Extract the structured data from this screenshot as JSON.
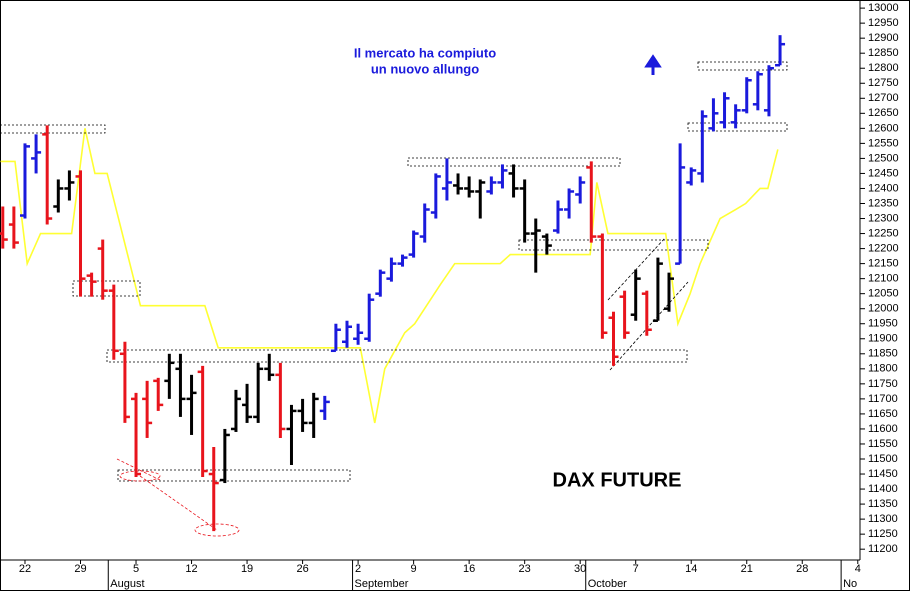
{
  "chart_data": {
    "type": "ohlc",
    "title": "DAX FUTURE",
    "annotation": [
      "Il mercato ha compiuto",
      "un nuovo allungo"
    ],
    "xlim": [
      -2.25,
      75.2
    ],
    "ylim": [
      11164,
      13027
    ],
    "xticks": [
      {
        "value": 0,
        "label": "22"
      },
      {
        "value": 5,
        "label": "29"
      },
      {
        "value": 10,
        "label": "5"
      },
      {
        "value": 15,
        "label": "12"
      },
      {
        "value": 20,
        "label": "19"
      },
      {
        "value": 25,
        "label": "26"
      },
      {
        "value": 30,
        "label": "2"
      },
      {
        "value": 35,
        "label": "9"
      },
      {
        "value": 40,
        "label": "16"
      },
      {
        "value": 45,
        "label": "23"
      },
      {
        "value": 50,
        "label": "30"
      },
      {
        "value": 55,
        "label": "7"
      },
      {
        "value": 60,
        "label": "14"
      },
      {
        "value": 65,
        "label": "21"
      },
      {
        "value": 70,
        "label": "28"
      },
      {
        "value": 75,
        "label": "4"
      }
    ],
    "month_ticks": [
      {
        "value": 7.5,
        "label": "August"
      },
      {
        "value": 29.5,
        "label": "September"
      },
      {
        "value": 50.5,
        "label": "October"
      },
      {
        "value": 73.5,
        "label": "No"
      }
    ],
    "yticks": [
      11200,
      11250,
      11300,
      11350,
      11400,
      11450,
      11500,
      11550,
      11600,
      11650,
      11700,
      11750,
      11800,
      11850,
      11900,
      11950,
      12000,
      12050,
      12100,
      12150,
      12200,
      12250,
      12300,
      12350,
      12400,
      12450,
      12500,
      12550,
      12600,
      12650,
      12700,
      12750,
      12800,
      12850,
      12900,
      12950,
      13000
    ],
    "x": [
      -2,
      -1,
      0,
      1,
      2,
      3,
      4,
      5,
      6,
      7,
      8,
      9,
      10,
      11,
      12,
      13,
      14,
      15,
      16,
      17,
      18,
      19,
      20,
      21,
      22,
      23,
      24,
      25,
      26,
      27,
      28,
      29,
      30,
      31,
      32,
      33,
      34,
      35,
      36,
      37,
      38,
      39,
      40,
      41,
      42,
      43,
      44,
      45,
      46,
      47,
      48,
      49,
      50,
      51,
      52,
      53,
      54,
      55,
      56,
      57,
      58,
      59,
      60,
      61,
      62,
      63,
      64,
      65,
      66,
      67,
      68
    ],
    "open": [
      12250,
      12280,
      12310,
      12500,
      12580,
      12340,
      12400,
      12440,
      12110,
      12200,
      12060,
      11850,
      11700,
      11700,
      11760,
      11760,
      11800,
      11700,
      11790,
      11450,
      11430,
      11600,
      11680,
      11640,
      11800,
      11780,
      11600,
      11660,
      11620,
      11660,
      11860,
      11890,
      11900,
      11900,
      12050,
      12100,
      12150,
      12180,
      12240,
      12320,
      12400,
      12410,
      12400,
      12390,
      12390,
      12420,
      12450,
      12400,
      12250,
      12240,
      12260,
      12330,
      12380,
      12470,
      12240,
      11970,
      12040,
      11980,
      12050,
      11960,
      12000,
      12150,
      12420,
      12450,
      12600,
      12620,
      12620,
      12660,
      12680,
      12660,
      12810
    ],
    "high": [
      12340,
      12340,
      12550,
      12580,
      12610,
      12430,
      12460,
      12460,
      12120,
      12230,
      12080,
      11890,
      11720,
      11760,
      11770,
      11850,
      11850,
      11780,
      11810,
      11540,
      11600,
      11730,
      11750,
      11820,
      11850,
      11820,
      11680,
      11700,
      11720,
      11710,
      11950,
      11960,
      11950,
      12050,
      12130,
      12170,
      12180,
      12260,
      12350,
      12450,
      12500,
      12450,
      12440,
      12430,
      12440,
      12480,
      12480,
      12430,
      12300,
      12250,
      12360,
      12400,
      12440,
      12490,
      12250,
      11990,
      12060,
      12130,
      12060,
      12170,
      12120,
      12550,
      12470,
      12660,
      12700,
      12720,
      12680,
      12770,
      12790,
      12810,
      12910
    ],
    "low": [
      12200,
      12200,
      12300,
      12450,
      12280,
      12320,
      12360,
      12040,
      12040,
      12030,
      11830,
      11620,
      11440,
      11570,
      11660,
      11700,
      11640,
      11580,
      11440,
      11260,
      11420,
      11590,
      11620,
      11620,
      11760,
      11570,
      11480,
      11590,
      11570,
      11630,
      11860,
      11870,
      11880,
      11890,
      12040,
      12090,
      12140,
      12170,
      12220,
      12300,
      12360,
      12380,
      12370,
      12300,
      12380,
      12400,
      12370,
      12220,
      12120,
      12180,
      12250,
      12300,
      12350,
      12220,
      11900,
      11810,
      11900,
      11960,
      11910,
      11960,
      11990,
      12150,
      12410,
      12420,
      12590,
      12600,
      12600,
      12650,
      12660,
      12640,
      12810
    ],
    "close": [
      12230,
      12220,
      12540,
      12520,
      12300,
      12400,
      12420,
      12100,
      12090,
      12060,
      11860,
      11640,
      11450,
      11620,
      11680,
      11820,
      11700,
      11720,
      11460,
      11420,
      11580,
      11700,
      11640,
      11800,
      11780,
      11600,
      11660,
      11620,
      11700,
      11690,
      11930,
      11940,
      11920,
      12030,
      12120,
      12150,
      12170,
      12250,
      12330,
      12440,
      12420,
      12400,
      12390,
      12420,
      12420,
      12460,
      12400,
      12250,
      12260,
      12210,
      12330,
      12390,
      12420,
      12240,
      11920,
      11840,
      11920,
      12100,
      11930,
      12150,
      12100,
      12470,
      12460,
      12640,
      12650,
      12700,
      12660,
      12760,
      12780,
      12800,
      12880
    ],
    "colors": [
      "#e8141c",
      "#e8141c",
      "#1a1adc",
      "#1a1adc",
      "#e8141c",
      "#000000",
      "#000000",
      "#e8141c",
      "#e8141c",
      "#e8141c",
      "#e8141c",
      "#e8141c",
      "#e8141c",
      "#e8141c",
      "#e8141c",
      "#000000",
      "#000000",
      "#000000",
      "#e8141c",
      "#e8141c",
      "#000000",
      "#000000",
      "#000000",
      "#000000",
      "#000000",
      "#e8141c",
      "#000000",
      "#000000",
      "#000000",
      "#1a1adc",
      "#1a1adc",
      "#1a1adc",
      "#1a1adc",
      "#1a1adc",
      "#1a1adc",
      "#1a1adc",
      "#1a1adc",
      "#1a1adc",
      "#1a1adc",
      "#1a1adc",
      "#1a1adc",
      "#000000",
      "#000000",
      "#000000",
      "#1a1adc",
      "#1a1adc",
      "#000000",
      "#000000",
      "#000000",
      "#000000",
      "#1a1adc",
      "#1a1adc",
      "#1a1adc",
      "#e8141c",
      "#e8141c",
      "#e8141c",
      "#e8141c",
      "#000000",
      "#e8141c",
      "#000000",
      "#000000",
      "#1a1adc",
      "#1a1adc",
      "#1a1adc",
      "#1a1adc",
      "#1a1adc",
      "#1a1adc",
      "#1a1adc",
      "#1a1adc",
      "#1a1adc",
      "#1a1adc"
    ],
    "line": {
      "color": "#ffff33",
      "x": [
        -2.2,
        -0.9,
        0.2,
        1.4,
        4.2,
        5.4,
        6.3,
        7.4,
        10.4,
        16.2,
        17.4,
        30.2,
        31.5,
        32.4,
        34.2,
        35.1,
        37.4,
        38.7,
        42.8,
        43.7,
        50.9,
        51.5,
        52.5,
        57.7,
        58.8,
        59.9,
        60.8,
        62.6,
        64.0,
        64.9,
        66.2,
        66.9,
        67.8
      ],
      "values": [
        12490,
        12490,
        12150,
        12250,
        12250,
        12600,
        12450,
        12450,
        12010,
        12010,
        11870,
        11870,
        11620,
        11800,
        11920,
        11950,
        12080,
        12150,
        12150,
        12180,
        12180,
        12420,
        12250,
        12250,
        11950,
        12050,
        12150,
        12300,
        12330,
        12350,
        12400,
        12400,
        12530
      ]
    }
  }
}
